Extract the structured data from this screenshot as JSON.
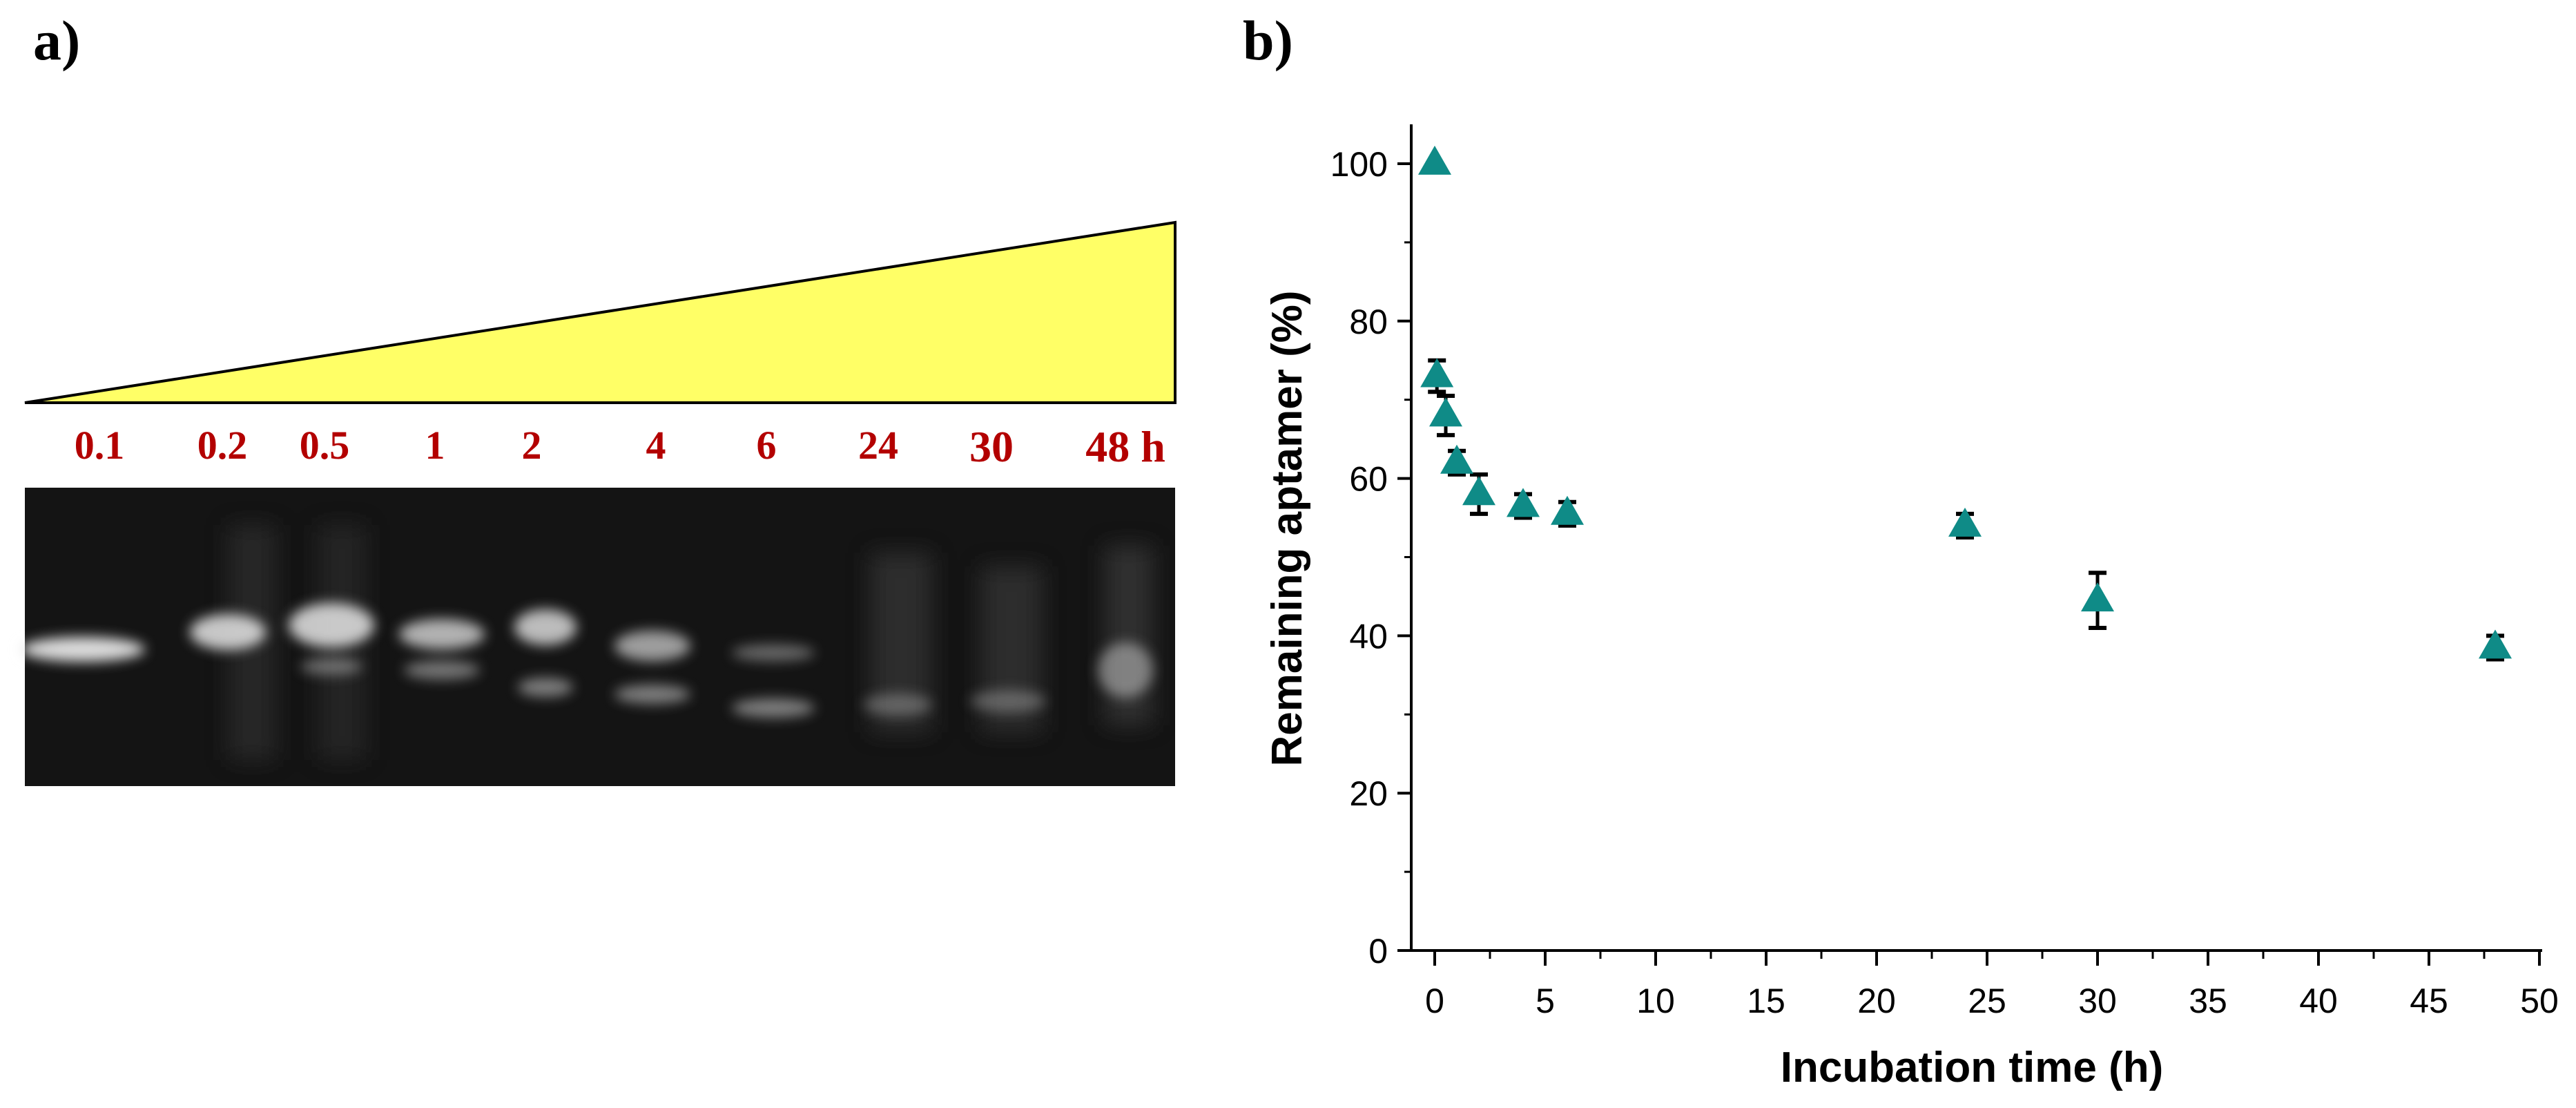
{
  "panels": {
    "a_label": "a)",
    "b_label": "b)"
  },
  "gel": {
    "lane_labels": [
      "0.1",
      "0.2",
      "0.5",
      "1",
      "2",
      "4",
      "6",
      "24",
      "30",
      "48 h"
    ],
    "triangle_color": "#ffff66",
    "label_color": "#b30000"
  },
  "chart_data": {
    "type": "scatter",
    "xlabel": "Incubation time (h)",
    "ylabel": "Remaining aptamer (%)",
    "xlim": [
      0,
      50
    ],
    "ylim": [
      0,
      105
    ],
    "xticks": [
      0,
      5,
      10,
      15,
      20,
      25,
      30,
      35,
      40,
      45,
      50
    ],
    "yticks": [
      0,
      20,
      40,
      60,
      80,
      100
    ],
    "marker": "triangle",
    "marker_color": "#0f8b87",
    "grid": false,
    "series": [
      {
        "x": [
          0,
          0.1,
          0.5,
          1,
          2,
          4,
          6,
          24,
          30,
          48
        ],
        "y": [
          100,
          73,
          68,
          62,
          58,
          56.5,
          55.5,
          54,
          44.5,
          38.5
        ],
        "error": [
          0,
          2,
          2.5,
          1.5,
          2.5,
          1.5,
          1.5,
          1.5,
          3.5,
          1.5
        ]
      }
    ]
  }
}
